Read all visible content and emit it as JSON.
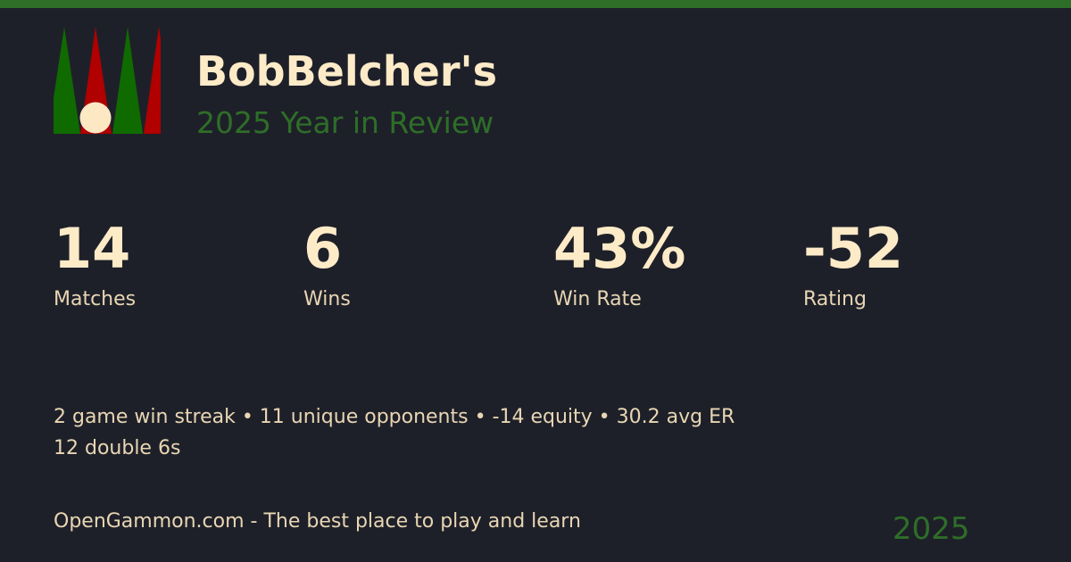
{
  "header": {
    "title": "BobBelcher's",
    "subtitle": "2025 Year in Review"
  },
  "logo": {
    "icon": "backgammon-board-icon",
    "colors": {
      "green": "#0f6b00",
      "red": "#b00000",
      "checker": "#fde8c4"
    }
  },
  "stats": [
    {
      "value": "14",
      "label": "Matches"
    },
    {
      "value": "6",
      "label": "Wins"
    },
    {
      "value": "43%",
      "label": "Win Rate"
    },
    {
      "value": "-52",
      "label": "Rating"
    }
  ],
  "facts": {
    "line1": "2 game win streak • 11 unique opponents • -14 equity • 30.2 avg ER",
    "line2": "12 double 6s"
  },
  "footer": {
    "tagline": "OpenGammon.com - The best place to play and learn",
    "year": "2025"
  },
  "colors": {
    "background": "#1e2029",
    "accent": "#2e6e28",
    "text": "#fdebc8"
  }
}
